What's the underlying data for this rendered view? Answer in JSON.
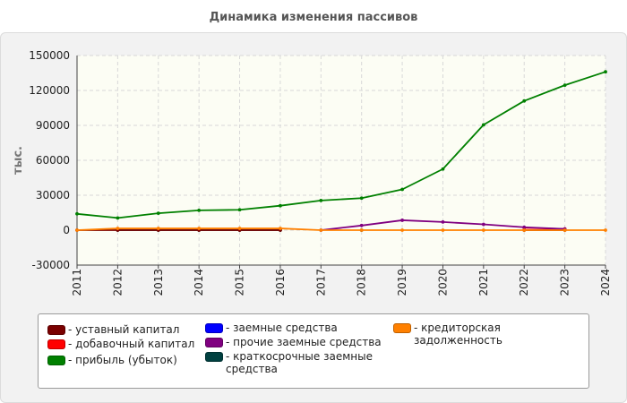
{
  "chart_data": {
    "type": "line",
    "title": "Динамика изменения пассивов",
    "ylabel": "тыс.",
    "xlabel": "",
    "ylim": [
      -30000,
      150000
    ],
    "yticks": [
      -30000,
      0,
      30000,
      60000,
      90000,
      120000,
      150000
    ],
    "x": [
      "2011",
      "2012",
      "2013",
      "2014",
      "2015",
      "2016",
      "2017",
      "2018",
      "2019",
      "2020",
      "2021",
      "2022",
      "2023",
      "2024"
    ],
    "series": [
      {
        "name": "- уставный капитал",
        "color": "#7a0000",
        "values": [
          0,
          0,
          0,
          0,
          0,
          0,
          null,
          null,
          null,
          null,
          null,
          0,
          0,
          null
        ]
      },
      {
        "name": "- добавочный капитал",
        "color": "#ff0000",
        "values": [
          null,
          null,
          null,
          null,
          null,
          null,
          null,
          null,
          null,
          null,
          null,
          2000,
          1000,
          null
        ]
      },
      {
        "name": "- прибыль (убыток)",
        "color": "#008000",
        "values": [
          14000,
          10500,
          14500,
          17000,
          17500,
          21000,
          25500,
          27500,
          35000,
          52500,
          90500,
          111000,
          124500,
          136000
        ]
      },
      {
        "name": "- заемные средства",
        "color": "#0000ff",
        "values": [
          null,
          null,
          null,
          null,
          null,
          null,
          null,
          null,
          null,
          null,
          null,
          null,
          null,
          null
        ]
      },
      {
        "name": "- прочие заемные средства",
        "color": "#800080",
        "values": [
          null,
          null,
          null,
          null,
          null,
          null,
          0,
          4000,
          8500,
          7000,
          5000,
          2500,
          1000,
          null
        ]
      },
      {
        "name": "- краткосрочные заемные средства",
        "color": "#004040",
        "values": [
          null,
          0,
          0,
          0,
          0,
          0,
          null,
          0,
          null,
          null,
          null,
          null,
          null,
          null
        ]
      },
      {
        "name": "- кредиторская задолженность",
        "color": "#ff8000",
        "values": [
          0,
          1500,
          1500,
          1500,
          1500,
          1500,
          0,
          0,
          0,
          0,
          0,
          0,
          0,
          0
        ]
      }
    ]
  }
}
